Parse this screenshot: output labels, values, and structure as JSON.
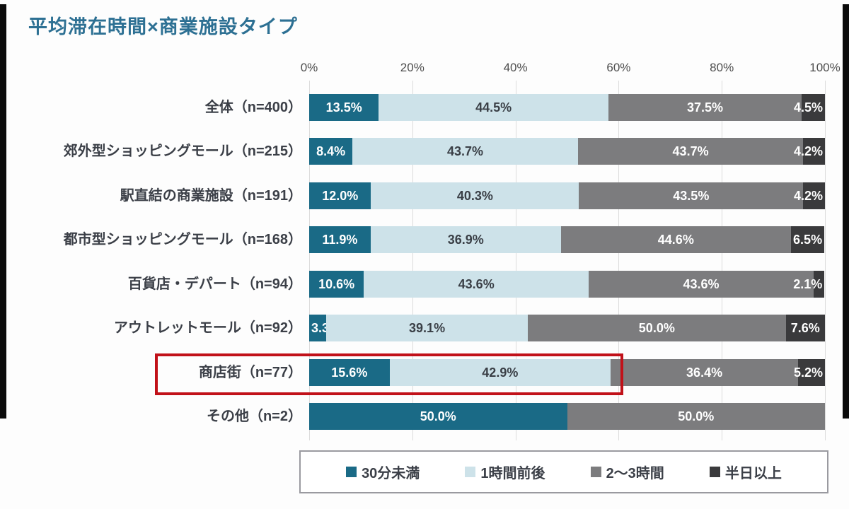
{
  "chart_data": {
    "type": "bar",
    "variant": "horizontal-stacked",
    "title": "平均滞在時間×商業施設タイプ",
    "x_ticks": [
      "0%",
      "20%",
      "40%",
      "60%",
      "80%",
      "100%"
    ],
    "x_range": [
      0,
      100
    ],
    "grid": true,
    "legend_position": "bottom",
    "series": [
      "30分未満",
      "1時間前後",
      "2～3時間",
      "半日以上"
    ],
    "series_colors": [
      "#1a6a86",
      "#cde2e9",
      "#7c7c7e",
      "#3a3a3c"
    ],
    "rows": [
      {
        "label": "全体（n=400）",
        "values": [
          13.5,
          44.5,
          37.5,
          4.5
        ],
        "highlighted": false
      },
      {
        "label": "郊外型ショッピングモール（n=215）",
        "values": [
          8.4,
          43.7,
          43.7,
          4.2
        ],
        "highlighted": false
      },
      {
        "label": "駅直結の商業施設（n=191）",
        "values": [
          12.0,
          40.3,
          43.5,
          4.2
        ],
        "highlighted": false
      },
      {
        "label": "都市型ショッピングモール（n=168）",
        "values": [
          11.9,
          36.9,
          44.6,
          6.5
        ],
        "highlighted": false
      },
      {
        "label": "百貨店・デパート（n=94）",
        "values": [
          10.6,
          43.6,
          43.6,
          2.1
        ],
        "highlighted": false
      },
      {
        "label": "アウトレットモール（n=92）",
        "values": [
          3.3,
          39.1,
          50.0,
          7.6
        ],
        "highlighted": false
      },
      {
        "label": "商店街（n=77）",
        "values": [
          15.6,
          42.9,
          36.4,
          5.2
        ],
        "highlighted": true
      },
      {
        "label": "その他（n=2）",
        "values": [
          50.0,
          0,
          50.0,
          0
        ],
        "highlighted": false
      }
    ]
  },
  "legend": {
    "items": [
      {
        "label": "30分未満",
        "color": "#1a6a86"
      },
      {
        "label": "1時間前後",
        "color": "#cde2e9"
      },
      {
        "label": "2～3時間",
        "color": "#7c7c7e"
      },
      {
        "label": "半日以上",
        "color": "#3a3a3c"
      }
    ]
  },
  "colors": {
    "title": "#2d7093",
    "highlight_border": "#c11119",
    "grid_line": "#dcdcdc",
    "axis_text": "#4d4d4d",
    "label_text": "#3b3f47",
    "value_text_dark": "#3a3f46",
    "value_text_light": "#ffffff",
    "legend_border": "#9a9aa0",
    "edge_bar": "#0b0b0b"
  }
}
